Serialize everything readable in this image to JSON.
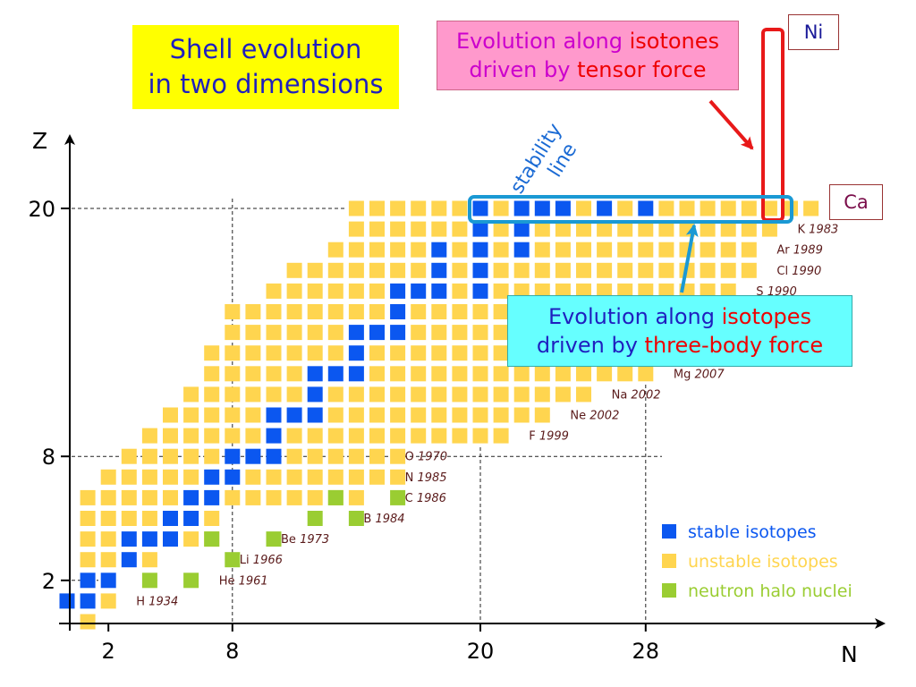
{
  "title": {
    "line1": "Shell evolution",
    "line2": "in two dimensions"
  },
  "isotones_note": {
    "part1": "Evolution along ",
    "part2": "isotones",
    "part3": "driven by ",
    "part4": "tensor force"
  },
  "isotopes_note": {
    "part1": "Evolution along ",
    "part2": "isotopes",
    "part3": "driven by ",
    "part4": "three-body force"
  },
  "stability_line": {
    "line1": "stability",
    "line2": "line"
  },
  "ni_label": "Ni",
  "ca_label": "Ca",
  "axes": {
    "x_title": "N",
    "y_title": "Z",
    "x_ticks": [
      {
        "value": 2,
        "label": "2"
      },
      {
        "value": 8,
        "label": "8"
      },
      {
        "value": 20,
        "label": "20"
      },
      {
        "value": 28,
        "label": "28"
      }
    ],
    "y_ticks": [
      {
        "value": 2,
        "label": "2"
      },
      {
        "value": 8,
        "label": "8"
      },
      {
        "value": 20,
        "label": "20"
      }
    ]
  },
  "legend": [
    {
      "label": "stable isotopes",
      "color": "#0b57f0"
    },
    {
      "label": "unstable isotopes",
      "color": "#ffd54f"
    },
    {
      "label": "neutron halo nuclei",
      "color": "#9acd32"
    }
  ],
  "colors": {
    "stable": "#0b57f0",
    "unstable": "#ffd54f",
    "halo": "#9acd32",
    "text_label": "#5a1a1a"
  },
  "element_labels": [
    {
      "name": "H",
      "year": "1934",
      "n": 3,
      "z": 1
    },
    {
      "name": "He",
      "year": "1961",
      "n": 7,
      "z": 2
    },
    {
      "name": "Li",
      "year": "1966",
      "n": 8,
      "z": 3
    },
    {
      "name": "Be",
      "year": "1973",
      "n": 10,
      "z": 4
    },
    {
      "name": "B",
      "year": "1984",
      "n": 14,
      "z": 5
    },
    {
      "name": "C",
      "year": "1986",
      "n": 16,
      "z": 6
    },
    {
      "name": "N",
      "year": "1985",
      "n": 16,
      "z": 7
    },
    {
      "name": "O",
      "year": "1970",
      "n": 16,
      "z": 8
    },
    {
      "name": "F",
      "year": "1999",
      "n": 22,
      "z": 9
    },
    {
      "name": "Ne",
      "year": "2002",
      "n": 24,
      "z": 10
    },
    {
      "name": "Na",
      "year": "2002",
      "n": 26,
      "z": 11
    },
    {
      "name": "Mg",
      "year": "2007",
      "n": 29,
      "z": 12
    },
    {
      "name": "S",
      "year": "1990",
      "n": 33,
      "z": 16
    },
    {
      "name": "Cl",
      "year": "1990",
      "n": 34,
      "z": 17
    },
    {
      "name": "Ar",
      "year": "1989",
      "n": 34,
      "z": 18
    },
    {
      "name": "K",
      "year": "1983",
      "n": 35,
      "z": 19
    }
  ],
  "nuclide_rows": [
    {
      "z": 0,
      "nmin": 1,
      "nmax": 1
    },
    {
      "z": 1,
      "nmin": 0,
      "nmax": 2
    },
    {
      "z": 2,
      "nmin": 1,
      "nmax": 2,
      "halo": [
        4,
        6
      ]
    },
    {
      "z": 3,
      "nmin": 1,
      "nmax": 4,
      "halo": [
        8
      ]
    },
    {
      "z": 4,
      "nmin": 1,
      "nmax": 7,
      "halo": [
        7,
        10
      ]
    },
    {
      "z": 5,
      "nmin": 1,
      "nmax": 7,
      "halo": [
        12,
        14
      ]
    },
    {
      "z": 6,
      "nmin": 1,
      "nmax": 14,
      "halo": [
        13,
        16
      ]
    },
    {
      "z": 7,
      "nmin": 2,
      "nmax": 16
    },
    {
      "z": 8,
      "nmin": 3,
      "nmax": 16
    },
    {
      "z": 9,
      "nmin": 4,
      "nmax": 21
    },
    {
      "z": 10,
      "nmin": 5,
      "nmax": 23
    },
    {
      "z": 11,
      "nmin": 6,
      "nmax": 25
    },
    {
      "z": 12,
      "nmin": 7,
      "nmax": 28
    },
    {
      "z": 13,
      "nmin": 7,
      "nmax": 30
    },
    {
      "z": 14,
      "nmin": 8,
      "nmax": 31
    },
    {
      "z": 15,
      "nmin": 8,
      "nmax": 31
    },
    {
      "z": 16,
      "nmin": 10,
      "nmax": 32
    },
    {
      "z": 17,
      "nmin": 11,
      "nmax": 33
    },
    {
      "z": 18,
      "nmin": 13,
      "nmax": 33
    },
    {
      "z": 19,
      "nmin": 14,
      "nmax": 34
    },
    {
      "z": 20,
      "nmin": 14,
      "nmax": 36
    }
  ],
  "stable_nuclides": [
    [
      0,
      1
    ],
    [
      1,
      1
    ],
    [
      1,
      2
    ],
    [
      2,
      2
    ],
    [
      3,
      3
    ],
    [
      3,
      4
    ],
    [
      4,
      4
    ],
    [
      5,
      4
    ],
    [
      5,
      5
    ],
    [
      6,
      5
    ],
    [
      6,
      6
    ],
    [
      7,
      6
    ],
    [
      7,
      7
    ],
    [
      8,
      7
    ],
    [
      8,
      8
    ],
    [
      9,
      8
    ],
    [
      10,
      8
    ],
    [
      10,
      9
    ],
    [
      10,
      10
    ],
    [
      11,
      10
    ],
    [
      12,
      10
    ],
    [
      12,
      11
    ],
    [
      12,
      12
    ],
    [
      13,
      12
    ],
    [
      14,
      12
    ],
    [
      14,
      13
    ],
    [
      14,
      14
    ],
    [
      15,
      14
    ],
    [
      16,
      14
    ],
    [
      16,
      15
    ],
    [
      16,
      16
    ],
    [
      17,
      16
    ],
    [
      18,
      16
    ],
    [
      20,
      16
    ],
    [
      18,
      17
    ],
    [
      20,
      17
    ],
    [
      18,
      18
    ],
    [
      20,
      18
    ],
    [
      22,
      18
    ],
    [
      20,
      19
    ],
    [
      22,
      19
    ],
    [
      20,
      20
    ],
    [
      22,
      20
    ],
    [
      23,
      20
    ],
    [
      24,
      20
    ],
    [
      26,
      20
    ],
    [
      28,
      20
    ]
  ]
}
